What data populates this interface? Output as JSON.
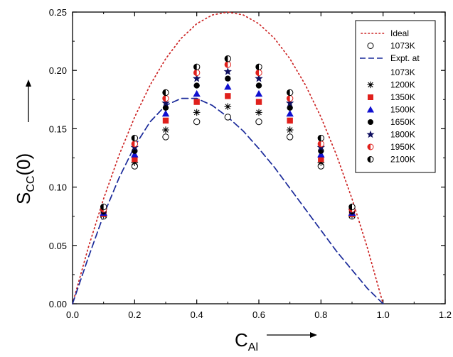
{
  "chart_data": {
    "type": "scatter",
    "title": "",
    "xlabel": {
      "main": "C",
      "sub": "Al"
    },
    "ylabel": {
      "main": "S",
      "sub": "CC",
      "suffix": "(0)"
    },
    "xlim": [
      0.0,
      1.2
    ],
    "ylim": [
      0.0,
      0.25
    ],
    "x_ticks": [
      0.0,
      0.2,
      0.4,
      0.6,
      0.8,
      1.0,
      1.2
    ],
    "x_tick_labels": [
      "0.0",
      "0.2",
      "0.4",
      "0.6",
      "0.8",
      "1.0",
      "1.2"
    ],
    "y_ticks": [
      0.0,
      0.05,
      0.1,
      0.15,
      0.2,
      0.25
    ],
    "y_tick_labels": [
      "0.00",
      "0.05",
      "0.10",
      "0.15",
      "0.20",
      "0.25"
    ],
    "grid": false,
    "legend_position": "top-right",
    "curves": [
      {
        "name": "Ideal",
        "style": "dotted",
        "color": "#cc2222",
        "x": [
          0.0,
          0.05,
          0.1,
          0.15,
          0.2,
          0.25,
          0.3,
          0.35,
          0.4,
          0.45,
          0.5,
          0.55,
          0.6,
          0.65,
          0.7,
          0.75,
          0.8,
          0.85,
          0.9,
          0.95,
          1.0
        ],
        "y": [
          0.0,
          0.0475,
          0.09,
          0.1275,
          0.16,
          0.1875,
          0.21,
          0.2275,
          0.24,
          0.2475,
          0.25,
          0.2475,
          0.24,
          0.2275,
          0.21,
          0.1875,
          0.16,
          0.1275,
          0.09,
          0.0475,
          0.0
        ]
      },
      {
        "name": "Expt. at 1073K",
        "style": "dashed",
        "color": "#1a2a9a",
        "x": [
          0.0,
          0.05,
          0.1,
          0.15,
          0.2,
          0.25,
          0.3,
          0.35,
          0.4,
          0.45,
          0.5,
          0.55,
          0.6,
          0.65,
          0.7,
          0.75,
          0.8,
          0.85,
          0.9,
          0.95,
          1.0
        ],
        "y": [
          0.0,
          0.039,
          0.076,
          0.108,
          0.135,
          0.156,
          0.17,
          0.176,
          0.176,
          0.17,
          0.16,
          0.148,
          0.133,
          0.117,
          0.099,
          0.081,
          0.063,
          0.045,
          0.029,
          0.013,
          0.0
        ]
      }
    ],
    "x": [
      0.1,
      0.2,
      0.3,
      0.4,
      0.5,
      0.6,
      0.7,
      0.8,
      0.9
    ],
    "series": [
      {
        "name": "1073K",
        "marker": "open-circle",
        "color": "#000000",
        "values": [
          0.075,
          0.118,
          0.143,
          0.156,
          0.16,
          0.156,
          0.143,
          0.118,
          0.075
        ]
      },
      {
        "name": "1200K",
        "marker": "asterisk",
        "color": "#000000",
        "values": [
          0.076,
          0.121,
          0.149,
          0.164,
          0.169,
          0.164,
          0.149,
          0.121,
          0.076
        ]
      },
      {
        "name": "1350K",
        "marker": "square",
        "color": "#e0201c",
        "values": [
          0.077,
          0.124,
          0.157,
          0.173,
          0.178,
          0.173,
          0.157,
          0.124,
          0.077
        ]
      },
      {
        "name": "1500K",
        "marker": "triangle",
        "color": "#1010d0",
        "values": [
          0.078,
          0.128,
          0.163,
          0.18,
          0.186,
          0.18,
          0.163,
          0.128,
          0.078
        ]
      },
      {
        "name": "1650K",
        "marker": "filled-circle",
        "color": "#000000",
        "values": [
          0.079,
          0.131,
          0.168,
          0.187,
          0.193,
          0.187,
          0.168,
          0.131,
          0.079
        ]
      },
      {
        "name": "1800K",
        "marker": "star",
        "color": "#101060",
        "values": [
          0.08,
          0.134,
          0.172,
          0.193,
          0.199,
          0.193,
          0.172,
          0.134,
          0.08
        ]
      },
      {
        "name": "1950K",
        "marker": "half-circle-red",
        "color": "#e0201c",
        "values": [
          0.081,
          0.137,
          0.176,
          0.198,
          0.205,
          0.198,
          0.176,
          0.137,
          0.081
        ]
      },
      {
        "name": "2100K",
        "marker": "half-circle-black",
        "color": "#000000",
        "values": [
          0.083,
          0.142,
          0.181,
          0.203,
          0.21,
          0.203,
          0.181,
          0.142,
          0.083
        ]
      }
    ],
    "legend": [
      {
        "label": "Ideal",
        "kind": "line-dotted"
      },
      {
        "label": "1073K",
        "kind": "open-circle"
      },
      {
        "label": "Expt. at",
        "label2": "1073K",
        "kind": "line-dashed"
      },
      {
        "label": "1200K",
        "kind": "asterisk"
      },
      {
        "label": "1350K",
        "kind": "square"
      },
      {
        "label": "1500K",
        "kind": "triangle"
      },
      {
        "label": "1650K",
        "kind": "filled-circle"
      },
      {
        "label": "1800K",
        "kind": "star"
      },
      {
        "label": "1950K",
        "kind": "half-circle-red"
      },
      {
        "label": "2100K",
        "kind": "half-circle-black"
      }
    ]
  }
}
